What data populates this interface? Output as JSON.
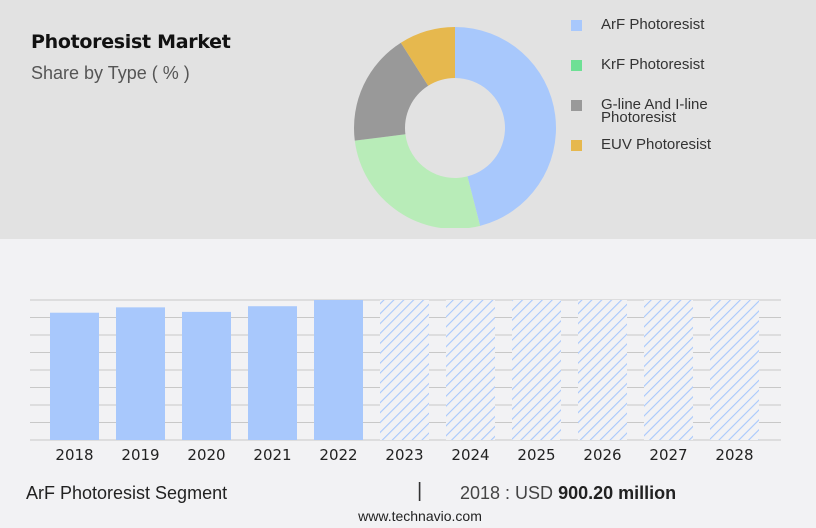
{
  "header": {
    "title": "Photoresist Market",
    "subtitle": "Share by Type ( % )"
  },
  "colors": {
    "top_band": "#e2e2e2",
    "page_bg": "#f2f2f4",
    "arf": "#a8c8fc",
    "krf": "#b8ecb8",
    "gline": "#999999",
    "euv": "#e6b84e",
    "legend_krf": "#6ee095",
    "gridline": "#c8c8c8"
  },
  "legend": {
    "items": [
      {
        "label": "ArF Photoresist",
        "color": "#a8c8fc"
      },
      {
        "label": "KrF Photoresist",
        "color": "#6ee095"
      },
      {
        "label": "G-line And I-line Photoresist",
        "line1": "G-line And I-line",
        "line2": "Photoresist",
        "color": "#999999"
      },
      {
        "label": "EUV Photoresist",
        "color": "#e6b84e"
      }
    ]
  },
  "chart_data": [
    {
      "type": "pie",
      "title": "Photoresist Market",
      "subtitle": "Share by Type ( % )",
      "donut": true,
      "categories": [
        "ArF Photoresist",
        "KrF Photoresist",
        "G-line And I-line Photoresist",
        "EUV Photoresist"
      ],
      "values": [
        46,
        27,
        18,
        9
      ],
      "legend_position": "right"
    },
    {
      "type": "bar",
      "title": "ArF Photoresist Segment",
      "categories": [
        "2018",
        "2019",
        "2020",
        "2021",
        "2022",
        "2023",
        "2024",
        "2025",
        "2026",
        "2027",
        "2028"
      ],
      "values": [
        900.2,
        938,
        906,
        946,
        990,
        null,
        null,
        null,
        null,
        null,
        null
      ],
      "forecast": [
        false,
        false,
        false,
        false,
        false,
        true,
        true,
        true,
        true,
        true,
        true
      ],
      "xlabel": "",
      "ylabel": "",
      "grid": true,
      "note": "Forecast years 2023-2028 shown as hatched full-height placeholders"
    }
  ],
  "bar_chart": {
    "years": [
      "2018",
      "2019",
      "2020",
      "2021",
      "2022",
      "2023",
      "2024",
      "2025",
      "2026",
      "2027",
      "2028"
    ]
  },
  "footer": {
    "segment": "ArF Photoresist Segment",
    "separator": "|",
    "year_label": "2018 : USD ",
    "value": "900.20 million",
    "url": "www.technavio.com"
  }
}
